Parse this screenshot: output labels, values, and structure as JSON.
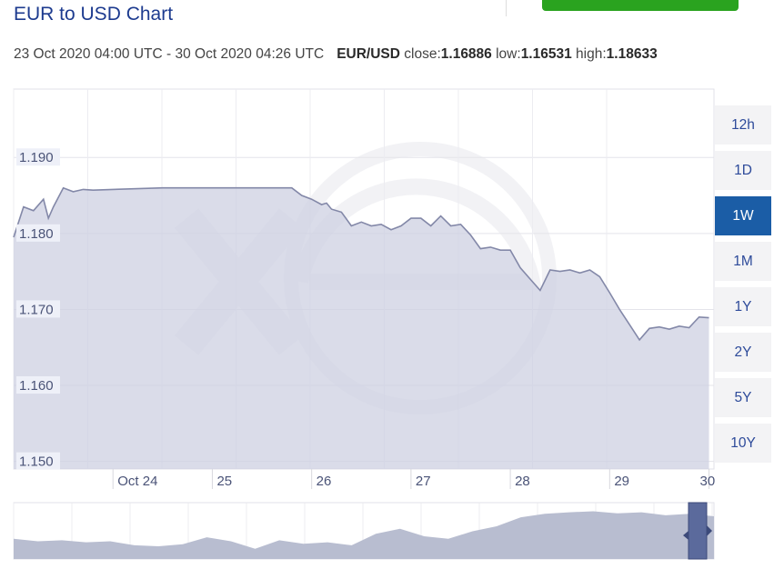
{
  "header": {
    "title": "EUR to USD Chart"
  },
  "info": {
    "range": "23 Oct 2020 04:00 UTC - 30 Oct 2020 04:26 UTC",
    "pair": "EUR/USD",
    "close_label": "close:",
    "close_value": "1.16886",
    "low_label": "low:",
    "low_value": "1.16531",
    "high_label": "high:",
    "high_value": "1.18633"
  },
  "range_buttons": [
    {
      "label": "12h"
    },
    {
      "label": "1D"
    },
    {
      "label": "1W",
      "active": true
    },
    {
      "label": "1M"
    },
    {
      "label": "1Y"
    },
    {
      "label": "2Y"
    },
    {
      "label": "5Y"
    },
    {
      "label": "10Y"
    }
  ],
  "colors": {
    "line": "#8388a8",
    "fill": "#cdd0e2",
    "active_button": "#1b5da6",
    "title": "#1d3b8f",
    "accent_green": "#2aa31f"
  },
  "chart_data": {
    "type": "area",
    "x_tick_labels": [
      "Oct 24",
      "25",
      "26",
      "27",
      "28",
      "29",
      "30"
    ],
    "y_tick_labels": [
      "1.190",
      "1.180",
      "1.170",
      "1.160",
      "1.150"
    ],
    "ylim": [
      1.149,
      1.199
    ],
    "xlim": [
      0,
      7.05
    ],
    "grid": true,
    "x": [
      0,
      0.1,
      0.2,
      0.3,
      0.35,
      0.4,
      0.5,
      0.6,
      0.7,
      0.8,
      1.0,
      1.5,
      2.0,
      2.5,
      2.8,
      2.9,
      3.0,
      3.1,
      3.15,
      3.2,
      3.3,
      3.4,
      3.5,
      3.6,
      3.7,
      3.8,
      3.9,
      4.0,
      4.1,
      4.2,
      4.3,
      4.4,
      4.5,
      4.6,
      4.7,
      4.8,
      4.9,
      5.0,
      5.1,
      5.2,
      5.3,
      5.4,
      5.5,
      5.6,
      5.7,
      5.8,
      5.9,
      6.0,
      6.1,
      6.2,
      6.3,
      6.4,
      6.5,
      6.6,
      6.7,
      6.8,
      6.9,
      7.0
    ],
    "y": [
      1.1795,
      1.1835,
      1.183,
      1.1845,
      1.182,
      1.1835,
      1.186,
      1.1855,
      1.1858,
      1.1857,
      1.1858,
      1.186,
      1.186,
      1.186,
      1.186,
      1.185,
      1.1845,
      1.1838,
      1.184,
      1.1832,
      1.1828,
      1.181,
      1.1815,
      1.181,
      1.1812,
      1.1805,
      1.181,
      1.182,
      1.182,
      1.181,
      1.1823,
      1.181,
      1.1812,
      1.1798,
      1.178,
      1.1782,
      1.1778,
      1.1778,
      1.1755,
      1.174,
      1.1725,
      1.1752,
      1.175,
      1.1752,
      1.1748,
      1.1752,
      1.1743,
      1.1722,
      1.17,
      1.168,
      1.166,
      1.1675,
      1.1677,
      1.1674,
      1.1678,
      1.1676,
      1.169,
      1.1689
    ]
  }
}
